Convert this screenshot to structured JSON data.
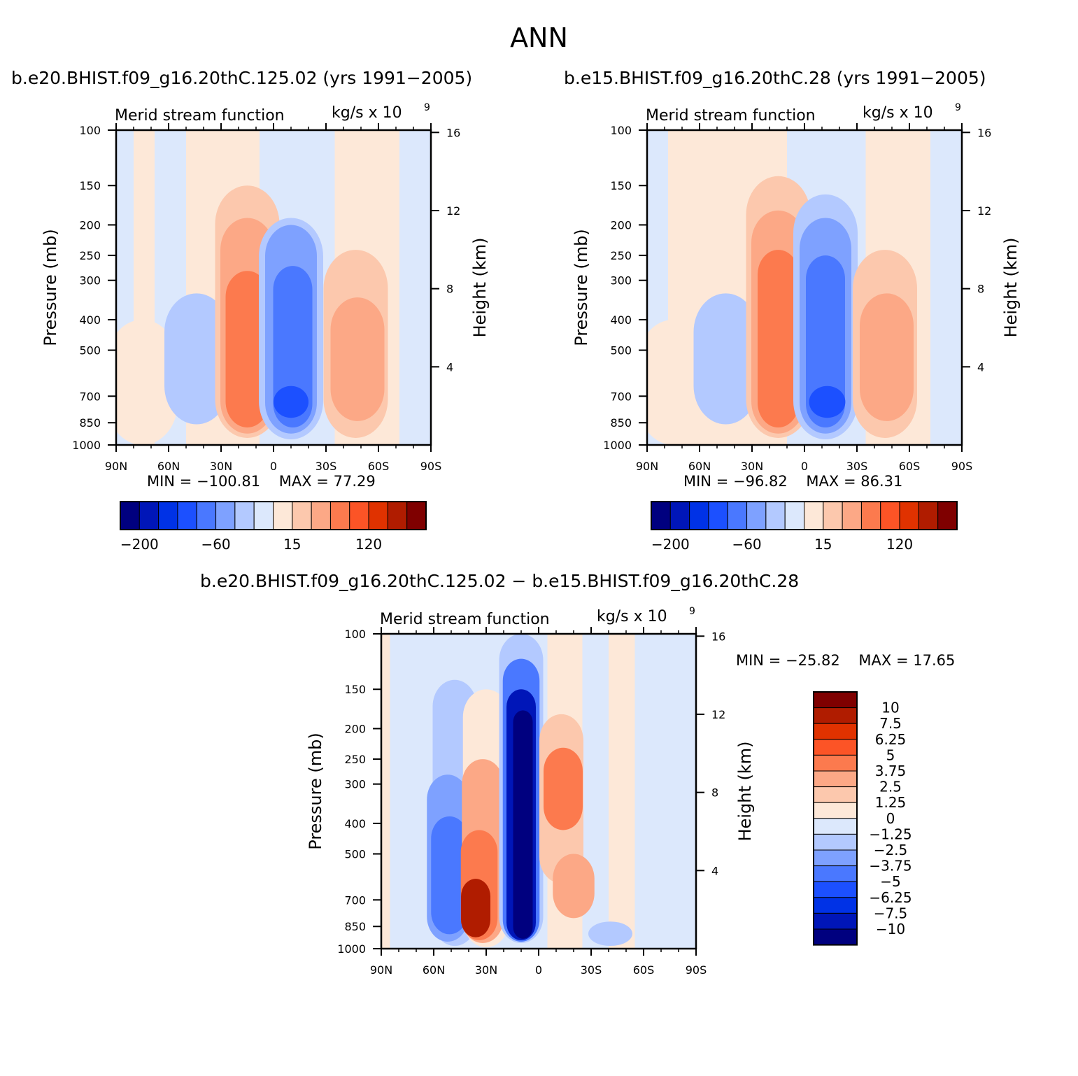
{
  "title": "ANN",
  "chart_data": [
    {
      "type": "heatmap",
      "title": "b.e20.BHIST.f09_g16.20thC.125.02 (yrs 1991−2005)",
      "subtitle": "Merid stream function",
      "units_label": "kg/s x 10",
      "units_exponent": "9",
      "xlabel": "",
      "ylabel": "Pressure (mb)",
      "ylabel_right": "Height (km)",
      "x_ticks": [
        "90N",
        "60N",
        "30N",
        "0",
        "30S",
        "60S",
        "90S"
      ],
      "x_values": [
        -90,
        -60,
        -30,
        0,
        30,
        60,
        90
      ],
      "y_ticks": [
        "100",
        "150",
        "200",
        "250",
        "300",
        "400",
        "500",
        "700",
        "850",
        "1000"
      ],
      "y_values": [
        100,
        150,
        200,
        250,
        300,
        400,
        500,
        700,
        850,
        1000
      ],
      "height_ticks": [
        "16",
        "12",
        "8",
        "4"
      ],
      "height_values": [
        16,
        12,
        8,
        4
      ],
      "ylim": [
        1000,
        100
      ],
      "min_label": "MIN =",
      "min_value": "−100.81",
      "max_label": "MAX =",
      "max_value": "77.29",
      "colorbar_labels": [
        "−200",
        "−60",
        "15",
        "120"
      ],
      "cells": [
        {
          "lat": -75,
          "lo": 400,
          "hi": 1000,
          "v": 15
        },
        {
          "lat": -44,
          "lo": 330,
          "hi": 860,
          "v": -30
        },
        {
          "lat": -15,
          "lo": 150,
          "hi": 950,
          "v": 30
        },
        {
          "lat": -15,
          "lo": 190,
          "hi": 920,
          "v": 55
        },
        {
          "lat": -15,
          "lo": 280,
          "hi": 880,
          "v": 80
        },
        {
          "lat": 10,
          "lo": 190,
          "hi": 960,
          "v": -30
        },
        {
          "lat": 10,
          "lo": 200,
          "hi": 920,
          "v": -60
        },
        {
          "lat": 11,
          "lo": 270,
          "hi": 880,
          "v": -90
        },
        {
          "lat": 10,
          "lo": 650,
          "hi": 820,
          "v": -101
        },
        {
          "lat": 47,
          "lo": 240,
          "hi": 950,
          "v": 30
        },
        {
          "lat": 48,
          "lo": 340,
          "hi": 840,
          "v": 55
        }
      ],
      "background_bands": [
        {
          "from": -90,
          "to": -80,
          "v": -10
        },
        {
          "from": -80,
          "to": -68,
          "v": 10
        },
        {
          "from": -68,
          "to": -50,
          "v": -10
        },
        {
          "from": -50,
          "to": -8,
          "v": 10
        },
        {
          "from": -8,
          "to": 35,
          "v": -10
        },
        {
          "from": 35,
          "to": 72,
          "v": 10
        },
        {
          "from": 72,
          "to": 90,
          "v": -10
        }
      ]
    },
    {
      "type": "heatmap",
      "title": "b.e15.BHIST.f09_g16.20thC.28 (yrs 1991−2005)",
      "subtitle": "Merid stream function",
      "units_label": "kg/s x 10",
      "units_exponent": "9",
      "xlabel": "",
      "ylabel": "Pressure (mb)",
      "ylabel_right": "Height (km)",
      "x_ticks": [
        "90N",
        "60N",
        "30N",
        "0",
        "30S",
        "60S",
        "90S"
      ],
      "x_values": [
        -90,
        -60,
        -30,
        0,
        30,
        60,
        90
      ],
      "y_ticks": [
        "100",
        "150",
        "200",
        "250",
        "300",
        "400",
        "500",
        "700",
        "850",
        "1000"
      ],
      "y_values": [
        100,
        150,
        200,
        250,
        300,
        400,
        500,
        700,
        850,
        1000
      ],
      "height_ticks": [
        "16",
        "12",
        "8",
        "4"
      ],
      "height_values": [
        16,
        12,
        8,
        4
      ],
      "ylim": [
        1000,
        100
      ],
      "min_label": "MIN =",
      "min_value": "−96.82",
      "max_label": "MAX =",
      "max_value": "86.31",
      "colorbar_labels": [
        "−200",
        "−60",
        "15",
        "120"
      ],
      "cells": [
        {
          "lat": -75,
          "lo": 400,
          "hi": 1000,
          "v": 15
        },
        {
          "lat": -45,
          "lo": 330,
          "hi": 860,
          "v": -30
        },
        {
          "lat": -15,
          "lo": 140,
          "hi": 950,
          "v": 30
        },
        {
          "lat": -15,
          "lo": 180,
          "hi": 920,
          "v": 55
        },
        {
          "lat": -15,
          "lo": 240,
          "hi": 880,
          "v": 85
        },
        {
          "lat": 12,
          "lo": 160,
          "hi": 960,
          "v": -30
        },
        {
          "lat": 12,
          "lo": 190,
          "hi": 920,
          "v": -60
        },
        {
          "lat": 12,
          "lo": 250,
          "hi": 880,
          "v": -90
        },
        {
          "lat": 13,
          "lo": 650,
          "hi": 820,
          "v": -97
        },
        {
          "lat": 46,
          "lo": 240,
          "hi": 950,
          "v": 30
        },
        {
          "lat": 47,
          "lo": 330,
          "hi": 840,
          "v": 55
        }
      ],
      "background_bands": [
        {
          "from": -90,
          "to": -78,
          "v": -10
        },
        {
          "from": -78,
          "to": -10,
          "v": 10
        },
        {
          "from": -10,
          "to": 35,
          "v": -10
        },
        {
          "from": 35,
          "to": 72,
          "v": 10
        },
        {
          "from": 72,
          "to": 90,
          "v": -10
        }
      ]
    },
    {
      "type": "heatmap",
      "title": "b.e20.BHIST.f09_g16.20thC.125.02 − b.e15.BHIST.f09_g16.20thC.28",
      "subtitle": "Merid stream function",
      "units_label": "kg/s x 10",
      "units_exponent": "9",
      "xlabel": "",
      "ylabel": "Pressure (mb)",
      "ylabel_right": "Height (km)",
      "x_ticks": [
        "90N",
        "60N",
        "30N",
        "0",
        "30S",
        "60S",
        "90S"
      ],
      "x_values": [
        -90,
        -60,
        -30,
        0,
        30,
        60,
        90
      ],
      "y_ticks": [
        "100",
        "150",
        "200",
        "250",
        "300",
        "400",
        "500",
        "700",
        "850",
        "1000"
      ],
      "y_values": [
        100,
        150,
        200,
        250,
        300,
        400,
        500,
        700,
        850,
        1000
      ],
      "height_ticks": [
        "16",
        "12",
        "8",
        "4"
      ],
      "height_values": [
        16,
        12,
        8,
        4
      ],
      "ylim": [
        1000,
        100
      ],
      "min_label": "MIN =",
      "min_value": "−25.82",
      "max_label": "MAX =",
      "max_value": "17.65",
      "colorbar_labels": [
        "10",
        "7.5",
        "6.25",
        "5",
        "3.75",
        "2.5",
        "1.25",
        "0",
        "−1.25",
        "−2.5",
        "−3.75",
        "−5",
        "−6.25",
        "−7.5",
        "−10"
      ],
      "cells": [
        {
          "lat": -48,
          "lo": 140,
          "hi": 980,
          "v": -2
        },
        {
          "lat": -52,
          "lo": 280,
          "hi": 950,
          "v": -3
        },
        {
          "lat": -51,
          "lo": 380,
          "hi": 900,
          "v": -5
        },
        {
          "lat": -30,
          "lo": 150,
          "hi": 990,
          "v": 1
        },
        {
          "lat": -32,
          "lo": 250,
          "hi": 960,
          "v": 3
        },
        {
          "lat": -34,
          "lo": 420,
          "hi": 940,
          "v": 5
        },
        {
          "lat": -36,
          "lo": 600,
          "hi": 920,
          "v": 8
        },
        {
          "lat": -10,
          "lo": 100,
          "hi": 960,
          "v": -2
        },
        {
          "lat": -10,
          "lo": 120,
          "hi": 950,
          "v": -5
        },
        {
          "lat": -10,
          "lo": 150,
          "hi": 940,
          "v": -8
        },
        {
          "lat": -9,
          "lo": 175,
          "hi": 930,
          "v": -12
        },
        {
          "lat": 13,
          "lo": 180,
          "hi": 620,
          "v": 2
        },
        {
          "lat": 14,
          "lo": 230,
          "hi": 420,
          "v": 4
        },
        {
          "lat": 20,
          "lo": 500,
          "hi": 800,
          "v": 3
        },
        {
          "lat": 41,
          "lo": 820,
          "hi": 980,
          "v": -2
        }
      ],
      "background_bands": [
        {
          "from": -90,
          "to": -85,
          "v": 0.5
        },
        {
          "from": -85,
          "to": 5,
          "v": -0.5
        },
        {
          "from": 5,
          "to": 25,
          "v": 0.5
        },
        {
          "from": 25,
          "to": 40,
          "v": -0.5
        },
        {
          "from": 40,
          "to": 55,
          "v": 0.5
        },
        {
          "from": 55,
          "to": 90,
          "v": -0.5
        }
      ]
    }
  ]
}
